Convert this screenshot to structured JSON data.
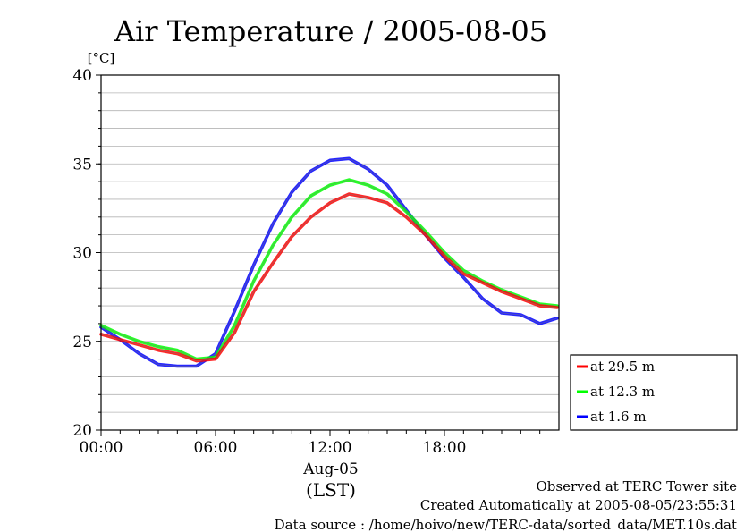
{
  "chart_data": {
    "type": "line",
    "title": "Air Temperature / 2005-08-05",
    "ylabel": "[°C]",
    "xlabel": "(LST)",
    "x_date_label": "Aug-05",
    "ylim": [
      20,
      40
    ],
    "xlim": [
      0,
      24
    ],
    "y_ticks": [
      "20",
      "25",
      "30",
      "35",
      "40"
    ],
    "x_ticks": [
      "00:00",
      "06:00",
      "12:00",
      "18:00"
    ],
    "x_tick_hours": [
      0,
      6,
      12,
      18
    ],
    "grid": true,
    "legend_position": "right-bottom, outside plot",
    "x": [
      0,
      1,
      2,
      3,
      4,
      5,
      6,
      7,
      8,
      9,
      10,
      11,
      12,
      13,
      14,
      15,
      16,
      17,
      18,
      19,
      20,
      21,
      22,
      23,
      23.9
    ],
    "series": [
      {
        "name": "at 29.5 m",
        "color": "#ff0000",
        "values": [
          25.4,
          25.1,
          24.8,
          24.5,
          24.3,
          23.9,
          24.0,
          25.5,
          27.8,
          29.4,
          30.9,
          32.0,
          32.8,
          33.3,
          33.1,
          32.8,
          32.0,
          31.0,
          29.8,
          28.8,
          28.3,
          27.8,
          27.4,
          27.0,
          26.9
        ]
      },
      {
        "name": "at 12.3 m",
        "color": "#00ff00",
        "values": [
          25.9,
          25.4,
          25.0,
          24.7,
          24.5,
          24.0,
          24.1,
          25.9,
          28.4,
          30.4,
          32.0,
          33.2,
          33.8,
          34.1,
          33.8,
          33.3,
          32.3,
          31.2,
          30.0,
          29.0,
          28.4,
          27.9,
          27.5,
          27.1,
          27.0
        ]
      },
      {
        "name": "at 1.6 m",
        "color": "#0000ff",
        "values": [
          25.8,
          25.1,
          24.3,
          23.7,
          23.6,
          23.6,
          24.3,
          26.7,
          29.3,
          31.6,
          33.4,
          34.6,
          35.2,
          35.3,
          34.7,
          33.8,
          32.4,
          31.0,
          29.7,
          28.6,
          27.4,
          26.6,
          26.5,
          26.0,
          26.3
        ]
      }
    ]
  },
  "footer": {
    "observed": "Observed at TERC Tower site",
    "created": "Created Automatically at 2005-08-05/23:55:31",
    "source": "Data source : /home/hoivo/new/TERC-data/sorted_data/MET.10s.dat"
  }
}
